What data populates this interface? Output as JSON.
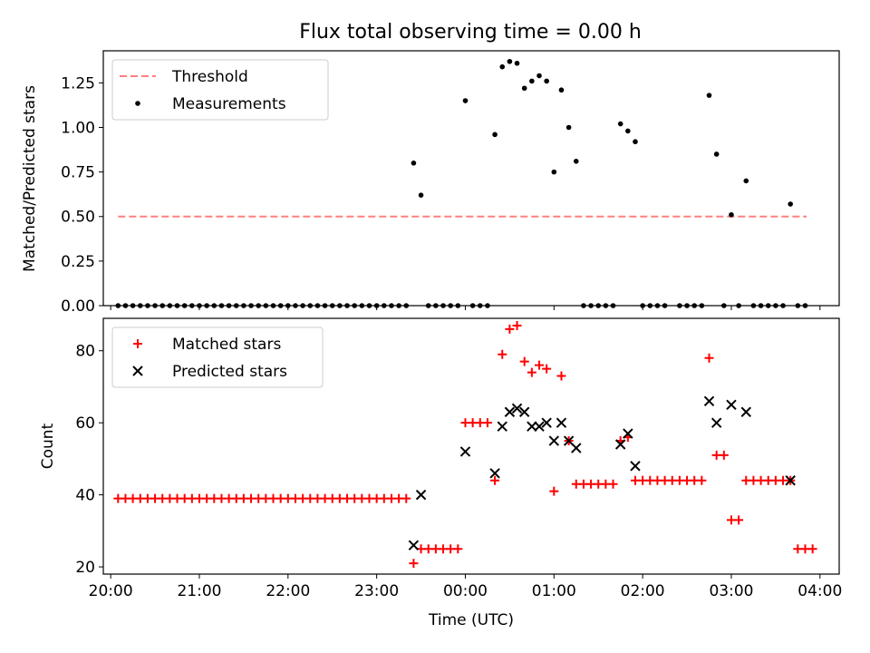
{
  "title": "Flux total observing time = 0.00 h",
  "colors": {
    "threshold": "#ff7f7f",
    "measurement": "#000000",
    "matched": "#ff0000",
    "predicted": "#000000"
  },
  "chart_data": [
    {
      "type": "scatter",
      "title": "Flux total observing time = 0.00 h",
      "ylabel": "Matched/Predicted stars",
      "xlabel": "",
      "x_axis": "time (UTC)",
      "xlim": [
        "19:55",
        "04:13"
      ],
      "ylim": [
        0,
        1.43
      ],
      "yticks": [
        "0.00",
        "0.25",
        "0.50",
        "0.75",
        "1.00",
        "1.25"
      ],
      "xticks": [
        "20:00",
        "21:00",
        "22:00",
        "23:00",
        "00:00",
        "01:00",
        "02:00",
        "03:00",
        "04:00"
      ],
      "show_xtick_labels": false,
      "grid": false,
      "legend": "upper left",
      "legend_entries": [
        "Threshold",
        "Measurements"
      ],
      "series": [
        {
          "name": "Threshold",
          "style": "dashed-line",
          "x": [
            "20:05",
            "03:51"
          ],
          "y": [
            0.5,
            0.5
          ]
        },
        {
          "name": "Measurements",
          "style": "dot",
          "points": [
            [
              "20:05",
              0
            ],
            [
              "20:10",
              0
            ],
            [
              "20:15",
              0
            ],
            [
              "20:20",
              0
            ],
            [
              "20:25",
              0
            ],
            [
              "20:30",
              0
            ],
            [
              "20:35",
              0
            ],
            [
              "20:40",
              0
            ],
            [
              "20:45",
              0
            ],
            [
              "20:50",
              0
            ],
            [
              "20:55",
              0
            ],
            [
              "21:00",
              0
            ],
            [
              "21:05",
              0
            ],
            [
              "21:10",
              0
            ],
            [
              "21:15",
              0
            ],
            [
              "21:20",
              0
            ],
            [
              "21:25",
              0
            ],
            [
              "21:30",
              0
            ],
            [
              "21:35",
              0
            ],
            [
              "21:40",
              0
            ],
            [
              "21:45",
              0
            ],
            [
              "21:50",
              0
            ],
            [
              "21:55",
              0
            ],
            [
              "22:00",
              0
            ],
            [
              "22:05",
              0
            ],
            [
              "22:10",
              0
            ],
            [
              "22:15",
              0
            ],
            [
              "22:20",
              0
            ],
            [
              "22:25",
              0
            ],
            [
              "22:30",
              0
            ],
            [
              "22:35",
              0
            ],
            [
              "22:40",
              0
            ],
            [
              "22:45",
              0
            ],
            [
              "22:50",
              0
            ],
            [
              "22:55",
              0
            ],
            [
              "23:00",
              0
            ],
            [
              "23:05",
              0
            ],
            [
              "23:10",
              0
            ],
            [
              "23:15",
              0
            ],
            [
              "23:20",
              0
            ],
            [
              "23:25",
              0.8
            ],
            [
              "23:30",
              0.62
            ],
            [
              "23:35",
              0
            ],
            [
              "23:40",
              0
            ],
            [
              "23:45",
              0
            ],
            [
              "23:50",
              0
            ],
            [
              "23:55",
              0
            ],
            [
              "00:00",
              1.15
            ],
            [
              "00:05",
              0
            ],
            [
              "00:10",
              0
            ],
            [
              "00:15",
              0
            ],
            [
              "00:20",
              0.96
            ],
            [
              "00:25",
              1.34
            ],
            [
              "00:30",
              1.37
            ],
            [
              "00:35",
              1.36
            ],
            [
              "00:40",
              1.22
            ],
            [
              "00:45",
              1.26
            ],
            [
              "00:50",
              1.29
            ],
            [
              "00:55",
              1.26
            ],
            [
              "01:00",
              0.75
            ],
            [
              "01:05",
              1.21
            ],
            [
              "01:10",
              1.0
            ],
            [
              "01:15",
              0.81
            ],
            [
              "01:20",
              0
            ],
            [
              "01:25",
              0
            ],
            [
              "01:30",
              0
            ],
            [
              "01:35",
              0
            ],
            [
              "01:40",
              0
            ],
            [
              "01:45",
              1.02
            ],
            [
              "01:50",
              0.98
            ],
            [
              "01:55",
              0.92
            ],
            [
              "02:00",
              0
            ],
            [
              "02:05",
              0
            ],
            [
              "02:10",
              0
            ],
            [
              "02:15",
              0
            ],
            [
              "02:25",
              0
            ],
            [
              "02:30",
              0
            ],
            [
              "02:35",
              0
            ],
            [
              "02:40",
              0
            ],
            [
              "02:45",
              1.18
            ],
            [
              "02:50",
              0.85
            ],
            [
              "02:55",
              0
            ],
            [
              "03:00",
              0.51
            ],
            [
              "03:05",
              0
            ],
            [
              "03:10",
              0.7
            ],
            [
              "03:15",
              0
            ],
            [
              "03:20",
              0
            ],
            [
              "03:25",
              0
            ],
            [
              "03:30",
              0
            ],
            [
              "03:35",
              0
            ],
            [
              "03:40",
              0.57
            ],
            [
              "03:45",
              0
            ],
            [
              "03:50",
              0
            ]
          ]
        }
      ]
    },
    {
      "type": "scatter",
      "ylabel": "Count",
      "xlabel": "Time (UTC)",
      "xlim": [
        "19:55",
        "04:13"
      ],
      "ylim": [
        18,
        89
      ],
      "yticks": [
        "20",
        "40",
        "60",
        "80"
      ],
      "xticks": [
        "20:00",
        "21:00",
        "22:00",
        "23:00",
        "00:00",
        "01:00",
        "02:00",
        "03:00",
        "04:00"
      ],
      "grid": false,
      "legend": "upper left",
      "legend_entries": [
        "Matched stars",
        "Predicted stars"
      ],
      "series": [
        {
          "name": "Matched stars",
          "marker": "plus",
          "points": [
            [
              "20:05",
              39
            ],
            [
              "20:10",
              39
            ],
            [
              "20:15",
              39
            ],
            [
              "20:20",
              39
            ],
            [
              "20:25",
              39
            ],
            [
              "20:30",
              39
            ],
            [
              "20:35",
              39
            ],
            [
              "20:40",
              39
            ],
            [
              "20:45",
              39
            ],
            [
              "20:50",
              39
            ],
            [
              "20:55",
              39
            ],
            [
              "21:00",
              39
            ],
            [
              "21:05",
              39
            ],
            [
              "21:10",
              39
            ],
            [
              "21:15",
              39
            ],
            [
              "21:20",
              39
            ],
            [
              "21:25",
              39
            ],
            [
              "21:30",
              39
            ],
            [
              "21:35",
              39
            ],
            [
              "21:40",
              39
            ],
            [
              "21:45",
              39
            ],
            [
              "21:50",
              39
            ],
            [
              "21:55",
              39
            ],
            [
              "22:00",
              39
            ],
            [
              "22:05",
              39
            ],
            [
              "22:10",
              39
            ],
            [
              "22:15",
              39
            ],
            [
              "22:20",
              39
            ],
            [
              "22:25",
              39
            ],
            [
              "22:30",
              39
            ],
            [
              "22:35",
              39
            ],
            [
              "22:40",
              39
            ],
            [
              "22:45",
              39
            ],
            [
              "22:50",
              39
            ],
            [
              "22:55",
              39
            ],
            [
              "23:00",
              39
            ],
            [
              "23:05",
              39
            ],
            [
              "23:10",
              39
            ],
            [
              "23:15",
              39
            ],
            [
              "23:20",
              39
            ],
            [
              "23:25",
              21
            ],
            [
              "23:30",
              25
            ],
            [
              "23:35",
              25
            ],
            [
              "23:40",
              25
            ],
            [
              "23:45",
              25
            ],
            [
              "23:50",
              25
            ],
            [
              "23:55",
              25
            ],
            [
              "00:00",
              60
            ],
            [
              "00:05",
              60
            ],
            [
              "00:10",
              60
            ],
            [
              "00:15",
              60
            ],
            [
              "00:20",
              44
            ],
            [
              "00:25",
              79
            ],
            [
              "00:30",
              86
            ],
            [
              "00:35",
              87
            ],
            [
              "00:40",
              77
            ],
            [
              "00:45",
              74
            ],
            [
              "00:50",
              76
            ],
            [
              "00:55",
              75
            ],
            [
              "01:00",
              41
            ],
            [
              "01:05",
              73
            ],
            [
              "01:10",
              55
            ],
            [
              "01:15",
              43
            ],
            [
              "01:20",
              43
            ],
            [
              "01:25",
              43
            ],
            [
              "01:30",
              43
            ],
            [
              "01:35",
              43
            ],
            [
              "01:40",
              43
            ],
            [
              "01:45",
              55
            ],
            [
              "01:50",
              56
            ],
            [
              "01:55",
              44
            ],
            [
              "02:00",
              44
            ],
            [
              "02:05",
              44
            ],
            [
              "02:10",
              44
            ],
            [
              "02:15",
              44
            ],
            [
              "02:20",
              44
            ],
            [
              "02:25",
              44
            ],
            [
              "02:30",
              44
            ],
            [
              "02:35",
              44
            ],
            [
              "02:40",
              44
            ],
            [
              "02:45",
              78
            ],
            [
              "02:50",
              51
            ],
            [
              "02:55",
              51
            ],
            [
              "03:00",
              33
            ],
            [
              "03:05",
              33
            ],
            [
              "03:10",
              44
            ],
            [
              "03:15",
              44
            ],
            [
              "03:20",
              44
            ],
            [
              "03:25",
              44
            ],
            [
              "03:30",
              44
            ],
            [
              "03:35",
              44
            ],
            [
              "03:40",
              44
            ],
            [
              "03:45",
              25
            ],
            [
              "03:50",
              25
            ],
            [
              "03:55",
              25
            ]
          ]
        },
        {
          "name": "Predicted stars",
          "marker": "x",
          "points": [
            [
              "23:25",
              26
            ],
            [
              "23:30",
              40
            ],
            [
              "00:00",
              52
            ],
            [
              "00:20",
              46
            ],
            [
              "00:25",
              59
            ],
            [
              "00:30",
              63
            ],
            [
              "00:35",
              64
            ],
            [
              "00:40",
              63
            ],
            [
              "00:45",
              59
            ],
            [
              "00:50",
              59
            ],
            [
              "00:55",
              60
            ],
            [
              "01:00",
              55
            ],
            [
              "01:05",
              60
            ],
            [
              "01:10",
              55
            ],
            [
              "01:15",
              53
            ],
            [
              "01:45",
              54
            ],
            [
              "01:50",
              57
            ],
            [
              "01:55",
              48
            ],
            [
              "02:45",
              66
            ],
            [
              "02:50",
              60
            ],
            [
              "03:00",
              65
            ],
            [
              "03:10",
              63
            ],
            [
              "03:40",
              44
            ]
          ]
        }
      ]
    }
  ]
}
